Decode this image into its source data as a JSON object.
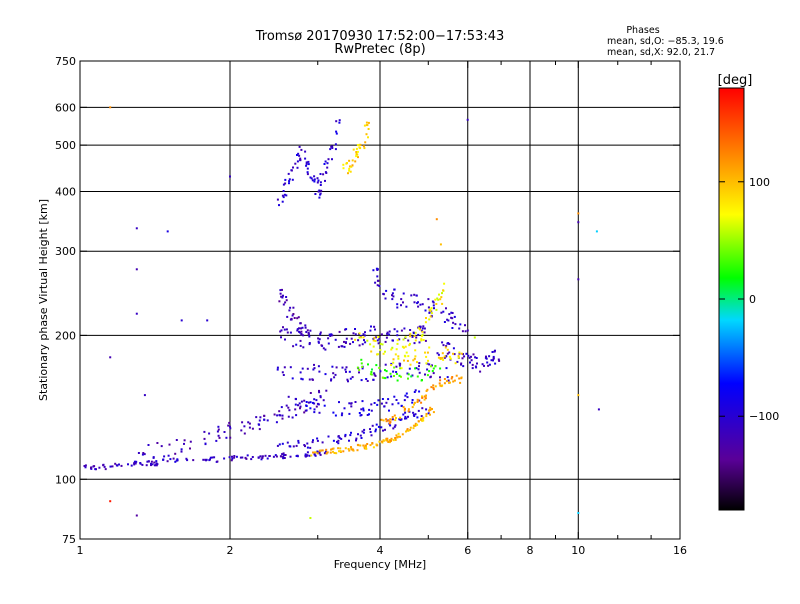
{
  "chart_data": {
    "type": "scatter",
    "title": "Tromsø 20170930 17:52:00−17:53:43",
    "subtitle": "RwPretec (8p)",
    "stats": {
      "header": "Phases",
      "line_o": "mean, sd,O: −85.3, 19.6",
      "line_x": "mean, sd,X:  92.0, 21.7"
    },
    "xlabel": "Frequency [MHz]",
    "ylabel": "Stationary phase Virtual Height [km]",
    "x_scale": "log",
    "y_scale": "log",
    "xlim": [
      1,
      16
    ],
    "ylim": [
      75,
      750
    ],
    "x_ticks": [
      {
        "value": 1,
        "label": "1"
      },
      {
        "value": 2,
        "label": "2"
      },
      {
        "value": 4,
        "label": "4"
      },
      {
        "value": 6,
        "label": "6"
      },
      {
        "value": 8,
        "label": "8"
      },
      {
        "value": 10,
        "label": "10"
      },
      {
        "value": 16,
        "label": "16"
      }
    ],
    "x_minor_ticks": [
      3,
      5,
      7,
      9,
      12,
      14
    ],
    "x_grid": [
      2,
      4,
      6,
      8,
      10
    ],
    "y_ticks": [
      {
        "value": 75,
        "label": "75"
      },
      {
        "value": 100,
        "label": "100"
      },
      {
        "value": 200,
        "label": "200"
      },
      {
        "value": 300,
        "label": "300"
      },
      {
        "value": 400,
        "label": "400"
      },
      {
        "value": 500,
        "label": "500"
      },
      {
        "value": 600,
        "label": "600"
      },
      {
        "value": 750,
        "label": "750"
      }
    ],
    "y_grid": [
      100,
      200,
      300,
      400,
      500,
      600
    ],
    "grid": true,
    "colorbar": {
      "label": "[deg]",
      "range": [
        -180,
        180
      ],
      "ticks": [
        {
          "value": 100,
          "label": "100"
        },
        {
          "value": 0,
          "label": "0"
        },
        {
          "value": -100,
          "label": "−100"
        }
      ]
    },
    "traces": [
      {
        "name": "",
        "phase": -110,
        "spread": 0.012,
        "points": [
          [
            1.0,
            106
          ],
          [
            1.1,
            106
          ],
          [
            1.2,
            107
          ],
          [
            1.3,
            108
          ],
          [
            1.4,
            108
          ],
          [
            1.5,
            109
          ],
          [
            1.7,
            110
          ],
          [
            1.9,
            110
          ],
          [
            2.1,
            111
          ],
          [
            2.3,
            111
          ],
          [
            2.5,
            112
          ],
          [
            2.7,
            112
          ],
          [
            2.9,
            113
          ],
          [
            3.1,
            114
          ]
        ]
      },
      {
        "name": "",
        "phase": -115,
        "spread": 0.04,
        "points": [
          [
            1.3,
            112
          ],
          [
            1.5,
            116
          ],
          [
            1.7,
            120
          ],
          [
            1.9,
            124
          ],
          [
            2.1,
            128
          ],
          [
            2.3,
            132
          ],
          [
            2.5,
            136
          ],
          [
            2.7,
            140
          ],
          [
            2.9,
            145
          ],
          [
            3.1,
            150
          ]
        ]
      },
      {
        "name": "",
        "phase": -110,
        "spread": 0.045,
        "points": [
          [
            2.5,
            200
          ],
          [
            2.7,
            198
          ],
          [
            2.9,
            196
          ],
          [
            3.1,
            195
          ],
          [
            3.3,
            196
          ],
          [
            3.5,
            198
          ],
          [
            3.7,
            200
          ],
          [
            3.9,
            200
          ],
          [
            4.2,
            200
          ],
          [
            4.5,
            200
          ],
          [
            4.8,
            200
          ],
          [
            5.0,
            200
          ]
        ]
      },
      {
        "name": "",
        "phase": -105,
        "spread": 0.04,
        "points": [
          [
            2.5,
            170
          ],
          [
            2.8,
            168
          ],
          [
            3.1,
            166
          ],
          [
            3.4,
            165
          ],
          [
            3.7,
            166
          ],
          [
            4.0,
            168
          ],
          [
            4.5,
            170
          ],
          [
            5.0,
            168
          ],
          [
            5.5,
            165
          ]
        ]
      },
      {
        "name": "",
        "phase": -95,
        "spread": 0.035,
        "points": [
          [
            2.6,
            145
          ],
          [
            2.9,
            143
          ],
          [
            3.2,
            141
          ],
          [
            3.5,
            140
          ],
          [
            3.8,
            141
          ],
          [
            4.1,
            143
          ],
          [
            4.4,
            145
          ],
          [
            4.8,
            150
          ]
        ]
      },
      {
        "name": "",
        "phase": -100,
        "spread": 0.025,
        "points": [
          [
            2.5,
            117
          ],
          [
            2.8,
            118
          ],
          [
            3.1,
            120
          ],
          [
            3.4,
            122
          ],
          [
            3.7,
            125
          ],
          [
            4.0,
            128
          ],
          [
            4.3,
            132
          ],
          [
            4.6,
            136
          ],
          [
            5.0,
            140
          ]
        ]
      },
      {
        "name": "",
        "phase": -120,
        "spread": 0.04,
        "points": [
          [
            2.5,
            245
          ],
          [
            2.6,
            230
          ],
          [
            2.7,
            215
          ],
          [
            2.8,
            205
          ],
          [
            2.9,
            198
          ]
        ]
      },
      {
        "name": "",
        "phase": -105,
        "spread": 0.045,
        "points": [
          [
            3.9,
            275
          ],
          [
            4.0,
            255
          ],
          [
            4.3,
            240
          ],
          [
            4.7,
            235
          ],
          [
            5.0,
            230
          ],
          [
            5.3,
            225
          ],
          [
            5.6,
            215
          ],
          [
            6.0,
            205
          ]
        ]
      },
      {
        "name": "",
        "phase": -110,
        "spread": 0.04,
        "points": [
          [
            5.2,
            190
          ],
          [
            5.5,
            185
          ],
          [
            5.8,
            180
          ],
          [
            6.1,
            176
          ],
          [
            6.4,
            174
          ],
          [
            6.7,
            178
          ],
          [
            6.9,
            182
          ]
        ]
      },
      {
        "name": "",
        "phase": 105,
        "spread": 0.012,
        "points": [
          [
            2.9,
            113
          ],
          [
            3.1,
            114
          ],
          [
            3.3,
            115
          ],
          [
            3.5,
            116
          ],
          [
            3.7,
            117
          ],
          [
            3.9,
            118
          ],
          [
            4.1,
            120
          ],
          [
            4.3,
            122
          ],
          [
            4.5,
            126
          ],
          [
            4.7,
            130
          ],
          [
            4.9,
            135
          ],
          [
            5.1,
            140
          ]
        ]
      },
      {
        "name": "",
        "phase": 110,
        "spread": 0.02,
        "points": [
          [
            4.0,
            130
          ],
          [
            4.3,
            135
          ],
          [
            4.6,
            142
          ],
          [
            4.9,
            150
          ],
          [
            5.2,
            157
          ],
          [
            5.5,
            161
          ],
          [
            5.8,
            162
          ]
        ]
      },
      {
        "name": "",
        "phase": 75,
        "spread": 0.05,
        "points": [
          [
            3.6,
            200
          ],
          [
            3.9,
            190
          ],
          [
            4.2,
            185
          ],
          [
            4.5,
            190
          ],
          [
            4.8,
            200
          ],
          [
            5.0,
            215
          ],
          [
            5.2,
            235
          ],
          [
            5.4,
            250
          ]
        ]
      },
      {
        "name": "",
        "phase": 85,
        "spread": 0.04,
        "points": [
          [
            4.2,
            175
          ],
          [
            4.6,
            178
          ],
          [
            5.0,
            182
          ],
          [
            5.4,
            185
          ],
          [
            5.8,
            180
          ]
        ]
      },
      {
        "name": "",
        "phase": 30,
        "spread": 0.035,
        "points": [
          [
            3.6,
            175
          ],
          [
            3.9,
            170
          ],
          [
            4.3,
            165
          ],
          [
            4.8,
            165
          ],
          [
            5.3,
            168
          ]
        ]
      },
      {
        "name": "",
        "phase": -100,
        "spread": 0.045,
        "points": [
          [
            2.5,
            380
          ],
          [
            2.6,
            410
          ],
          [
            2.7,
            450
          ],
          [
            2.8,
            480
          ],
          [
            2.9,
            430
          ],
          [
            3.0,
            400
          ],
          [
            3.1,
            440
          ],
          [
            3.2,
            480
          ],
          [
            3.3,
            540
          ]
        ]
      },
      {
        "name": "",
        "phase": 90,
        "spread": 0.03,
        "points": [
          [
            3.4,
            440
          ],
          [
            3.5,
            460
          ],
          [
            3.6,
            480
          ],
          [
            3.7,
            500
          ],
          [
            3.8,
            560
          ]
        ]
      }
    ],
    "outliers": [
      [
        1.15,
        600,
        120
      ],
      [
        1.15,
        180,
        -120
      ],
      [
        1.3,
        335,
        -110
      ],
      [
        1.3,
        275,
        -120
      ],
      [
        1.3,
        222,
        -110
      ],
      [
        1.5,
        330,
        -90
      ],
      [
        1.6,
        215,
        -100
      ],
      [
        1.8,
        215,
        -100
      ],
      [
        2.0,
        430,
        -110
      ],
      [
        1.15,
        90,
        170
      ],
      [
        1.3,
        84,
        -130
      ],
      [
        1.35,
        150,
        -110
      ],
      [
        2.9,
        83,
        60
      ],
      [
        6.0,
        565,
        -110
      ],
      [
        10.0,
        345,
        -120
      ],
      [
        10.0,
        360,
        120
      ],
      [
        10.0,
        262,
        -120
      ],
      [
        10.9,
        330,
        -20
      ],
      [
        10.0,
        150,
        100
      ],
      [
        11.0,
        140,
        -110
      ],
      [
        10.0,
        85,
        -20
      ],
      [
        5.2,
        350,
        120
      ],
      [
        5.3,
        310,
        100
      ],
      [
        6.2,
        198,
        60
      ]
    ]
  }
}
